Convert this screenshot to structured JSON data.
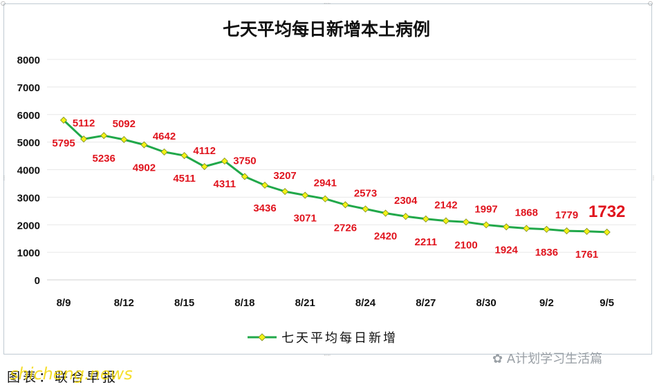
{
  "chart_data": {
    "type": "line",
    "title": "七天平均每日新增本土病例",
    "ylim": [
      0,
      8000
    ],
    "yticks": [
      0,
      1000,
      2000,
      3000,
      4000,
      5000,
      6000,
      7000,
      8000
    ],
    "x_tick_labels": [
      "8/9",
      "8/12",
      "8/15",
      "8/18",
      "8/21",
      "8/24",
      "8/27",
      "8/30",
      "9/2",
      "9/5"
    ],
    "series": [
      {
        "name": "七天平均每日新增",
        "color": "#21a84a",
        "marker_color": "#f2f217",
        "values": [
          5795,
          5112,
          5236,
          5092,
          4902,
          4642,
          4511,
          4112,
          4311,
          3750,
          3436,
          3207,
          3071,
          2941,
          2726,
          2573,
          2420,
          2304,
          2211,
          2142,
          2100,
          1997,
          1924,
          1868,
          1836,
          1779,
          1761,
          1732
        ]
      }
    ],
    "data_labels": [
      {
        "index": 0,
        "value": "5795"
      },
      {
        "index": 1,
        "value": "5112"
      },
      {
        "index": 2,
        "value": "5236"
      },
      {
        "index": 3,
        "value": "5092"
      },
      {
        "index": 4,
        "value": "4902"
      },
      {
        "index": 5,
        "value": "4642"
      },
      {
        "index": 6,
        "value": "4511"
      },
      {
        "index": 7,
        "value": "4112"
      },
      {
        "index": 8,
        "value": "4311"
      },
      {
        "index": 9,
        "value": "3750"
      },
      {
        "index": 10,
        "value": "3436"
      },
      {
        "index": 11,
        "value": "3207"
      },
      {
        "index": 12,
        "value": "3071"
      },
      {
        "index": 13,
        "value": "2941"
      },
      {
        "index": 14,
        "value": "2726"
      },
      {
        "index": 15,
        "value": "2573"
      },
      {
        "index": 16,
        "value": "2420"
      },
      {
        "index": 17,
        "value": "2304"
      },
      {
        "index": 18,
        "value": "2211"
      },
      {
        "index": 19,
        "value": "2142"
      },
      {
        "index": 20,
        "value": "2100"
      },
      {
        "index": 21,
        "value": "1997"
      },
      {
        "index": 22,
        "value": "1924"
      },
      {
        "index": 23,
        "value": "1868"
      },
      {
        "index": 24,
        "value": "1836"
      },
      {
        "index": 25,
        "value": "1779"
      },
      {
        "index": 26,
        "value": "1761"
      },
      {
        "index": 27,
        "value": "1732"
      }
    ],
    "label_color": "#e0141e",
    "grid": true,
    "legend": "bottom-center"
  },
  "footer": {
    "left_text": "图表：联合早报",
    "brand": "shicheng.news",
    "watermark": "A计划学习生活篇"
  }
}
